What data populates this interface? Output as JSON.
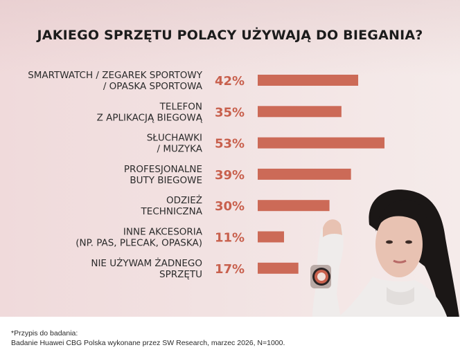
{
  "title": "JAKIEGO SPRZĘTU POLACY UŻYWAJĄ DO BIEGANIA?",
  "colors": {
    "bar": "#cc6a57",
    "percent": "#c8604d",
    "title": "#1c1c1c"
  },
  "chart_data": {
    "type": "bar",
    "orientation": "horizontal",
    "title": "JAKIEGO SPRZĘTU POLACY UŻYWAJĄ DO BIEGANIA?",
    "categories": [
      [
        "SMARTWATCH / ZEGAREK SPORTOWY",
        "/ OPASKA SPORTOWA"
      ],
      [
        "TELEFON",
        "Z APLIKACJĄ BIEGOWĄ"
      ],
      [
        "SŁUCHAWKI",
        "/ MUZYKA"
      ],
      [
        "PROFESJONALNE",
        "BUTY BIEGOWE"
      ],
      [
        "ODZIEŻ",
        "TECHNICZNA"
      ],
      [
        "INNE AKCESORIA",
        "(NP. PAS, PLECAK, OPASKA)"
      ],
      [
        "NIE UŻYWAM ŻADNEGO",
        "SPRZĘTU"
      ]
    ],
    "values": [
      42,
      35,
      53,
      39,
      30,
      11,
      17
    ],
    "value_labels": [
      "42%",
      "35%",
      "53%",
      "39%",
      "30%",
      "11%",
      "17%"
    ],
    "unit": "%",
    "xlim": [
      0,
      100
    ],
    "grid": false,
    "legend": "none"
  },
  "footnote": {
    "line1": "*Przypis do badania:",
    "line2": "Badanie Huawei CBG Polska wykonane przez SW Research, marzec 2026, N=1000."
  }
}
